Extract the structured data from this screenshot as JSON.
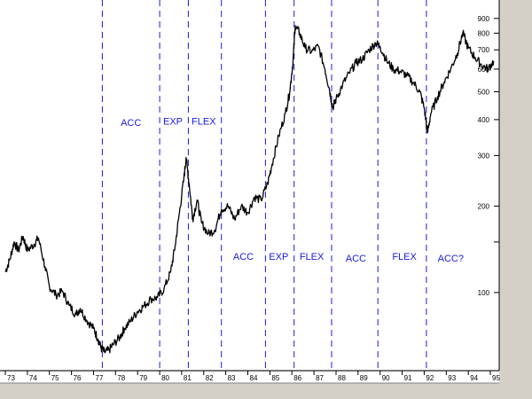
{
  "chart_data": {
    "type": "line",
    "title": "",
    "xlabel": "",
    "ylabel": "",
    "y_scale": "log",
    "ylim": [
      55,
      1000
    ],
    "xlim": [
      1973.0,
      1995.2
    ],
    "y_ticks": [
      {
        "value": 900,
        "label": "900"
      },
      {
        "value": 800,
        "label": "800"
      },
      {
        "value": 700,
        "label": "700"
      },
      {
        "value": 600,
        "label": "600"
      },
      {
        "value": 500,
        "label": "500"
      },
      {
        "value": 400,
        "label": "400"
      },
      {
        "value": 300,
        "label": "300"
      },
      {
        "value": 200,
        "label": "200"
      },
      {
        "value": 150,
        "label": ""
      },
      {
        "value": 100,
        "label": "100"
      }
    ],
    "x_ticks": [
      {
        "value": 1973,
        "label": "73"
      },
      {
        "value": 1974,
        "label": "74"
      },
      {
        "value": 1975,
        "label": "75"
      },
      {
        "value": 1976,
        "label": "76"
      },
      {
        "value": 1977,
        "label": "77"
      },
      {
        "value": 1978,
        "label": "78"
      },
      {
        "value": 1979,
        "label": "79"
      },
      {
        "value": 1980,
        "label": "80"
      },
      {
        "value": 1981,
        "label": "81"
      },
      {
        "value": 1982,
        "label": "82"
      },
      {
        "value": 1983,
        "label": "83"
      },
      {
        "value": 1984,
        "label": "84"
      },
      {
        "value": 1985,
        "label": "85"
      },
      {
        "value": 1986,
        "label": "86"
      },
      {
        "value": 1987,
        "label": "87"
      },
      {
        "value": 1988,
        "label": "88"
      },
      {
        "value": 1989,
        "label": "89"
      },
      {
        "value": 1990,
        "label": "90"
      },
      {
        "value": 1991,
        "label": "91"
      },
      {
        "value": 1992,
        "label": "92"
      },
      {
        "value": 1993,
        "label": "93"
      },
      {
        "value": 1994,
        "label": "94"
      },
      {
        "value": 1995,
        "label": "95"
      }
    ],
    "phase_dividers": [
      1977.4,
      1980.0,
      1981.3,
      1982.8,
      1984.8,
      1986.1,
      1987.8,
      1989.9,
      1992.1
    ],
    "phase_labels_upper": [
      {
        "text": "ACC",
        "x": 1978.7,
        "y": 380
      },
      {
        "text": "EXP",
        "x": 1980.6,
        "y": 385
      },
      {
        "text": "FLEX",
        "x": 1982.0,
        "y": 385
      }
    ],
    "phase_labels_lower": [
      {
        "text": "ACC",
        "x": 1983.8,
        "y": 130
      },
      {
        "text": "EXP",
        "x": 1985.4,
        "y": 130
      },
      {
        "text": "FLEX",
        "x": 1986.9,
        "y": 130
      },
      {
        "text": "ACC",
        "x": 1988.9,
        "y": 128
      },
      {
        "text": "FLEX",
        "x": 1991.1,
        "y": 130
      },
      {
        "text": "ACC?",
        "x": 1993.2,
        "y": 128
      }
    ],
    "series": [
      {
        "color": "#000000",
        "points": [
          [
            1973.0,
            118
          ],
          [
            1973.2,
            130
          ],
          [
            1973.4,
            150
          ],
          [
            1973.6,
            140
          ],
          [
            1973.8,
            157
          ],
          [
            1974.0,
            140
          ],
          [
            1974.3,
            147
          ],
          [
            1974.5,
            155
          ],
          [
            1974.8,
            123
          ],
          [
            1975.0,
            105
          ],
          [
            1975.3,
            98
          ],
          [
            1975.6,
            101
          ],
          [
            1975.9,
            90
          ],
          [
            1976.2,
            84
          ],
          [
            1976.4,
            88
          ],
          [
            1976.7,
            80
          ],
          [
            1977.0,
            75
          ],
          [
            1977.2,
            69
          ],
          [
            1977.35,
            64
          ],
          [
            1977.5,
            62
          ],
          [
            1977.7,
            63
          ],
          [
            1977.9,
            66
          ],
          [
            1978.2,
            70
          ],
          [
            1978.4,
            75
          ],
          [
            1978.7,
            80
          ],
          [
            1979.0,
            86
          ],
          [
            1979.3,
            90
          ],
          [
            1979.6,
            95
          ],
          [
            1979.9,
            96
          ],
          [
            1980.2,
            103
          ],
          [
            1980.5,
            118
          ],
          [
            1980.7,
            145
          ],
          [
            1980.9,
            190
          ],
          [
            1981.1,
            250
          ],
          [
            1981.2,
            295
          ],
          [
            1981.35,
            235
          ],
          [
            1981.5,
            180
          ],
          [
            1981.7,
            210
          ],
          [
            1981.9,
            175
          ],
          [
            1982.2,
            160
          ],
          [
            1982.5,
            165
          ],
          [
            1982.8,
            195
          ],
          [
            1983.1,
            200
          ],
          [
            1983.4,
            180
          ],
          [
            1983.7,
            200
          ],
          [
            1984.0,
            190
          ],
          [
            1984.3,
            215
          ],
          [
            1984.6,
            210
          ],
          [
            1984.9,
            240
          ],
          [
            1985.1,
            280
          ],
          [
            1985.4,
            350
          ],
          [
            1985.7,
            420
          ],
          [
            1985.9,
            500
          ],
          [
            1986.05,
            640
          ],
          [
            1986.15,
            850
          ],
          [
            1986.35,
            800
          ],
          [
            1986.6,
            710
          ],
          [
            1986.9,
            690
          ],
          [
            1987.2,
            720
          ],
          [
            1987.5,
            600
          ],
          [
            1987.7,
            510
          ],
          [
            1987.85,
            440
          ],
          [
            1988.0,
            470
          ],
          [
            1988.3,
            530
          ],
          [
            1988.6,
            580
          ],
          [
            1988.9,
            630
          ],
          [
            1989.2,
            650
          ],
          [
            1989.5,
            700
          ],
          [
            1989.8,
            740
          ],
          [
            1990.0,
            720
          ],
          [
            1990.3,
            640
          ],
          [
            1990.6,
            600
          ],
          [
            1990.9,
            590
          ],
          [
            1991.2,
            570
          ],
          [
            1991.5,
            540
          ],
          [
            1991.8,
            500
          ],
          [
            1992.0,
            440
          ],
          [
            1992.15,
            360
          ],
          [
            1992.3,
            420
          ],
          [
            1992.6,
            480
          ],
          [
            1992.9,
            540
          ],
          [
            1993.2,
            600
          ],
          [
            1993.5,
            680
          ],
          [
            1993.75,
            800
          ],
          [
            1994.0,
            710
          ],
          [
            1994.3,
            660
          ],
          [
            1994.6,
            620
          ],
          [
            1994.9,
            600
          ],
          [
            1995.15,
            640
          ]
        ]
      }
    ]
  }
}
